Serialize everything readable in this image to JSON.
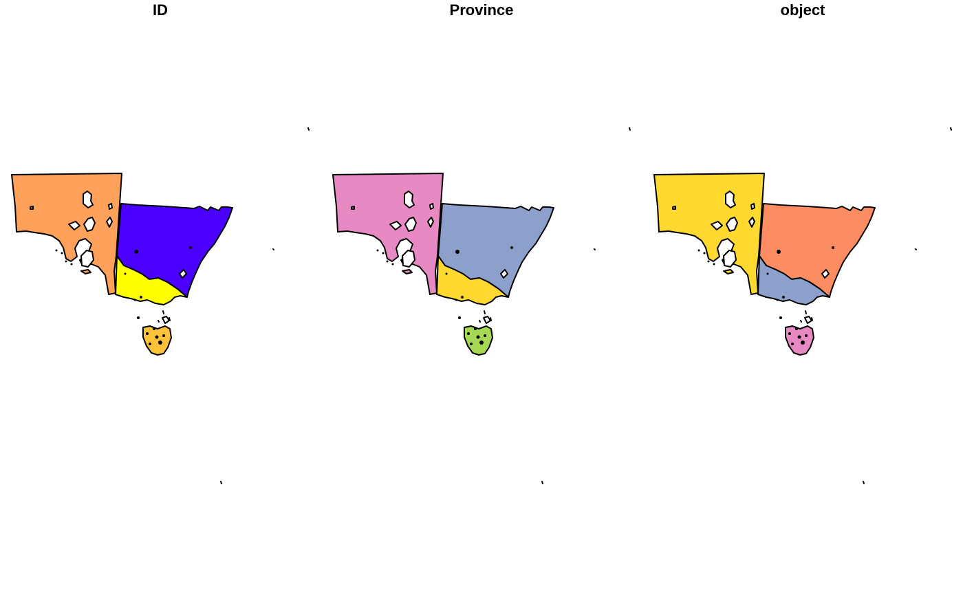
{
  "panels": [
    {
      "title": "ID",
      "colors": {
        "south_australia": "#FFA15A",
        "new_south_wales": "#4B00FF",
        "victoria": "#FFFF00",
        "tasmania": "#FFC23A"
      }
    },
    {
      "title": "Province",
      "colors": {
        "south_australia": "#E78AC3",
        "new_south_wales": "#8DA0CB",
        "victoria": "#FFD92F",
        "tasmania": "#A6D854"
      }
    },
    {
      "title": "object",
      "colors": {
        "south_australia": "#FFD92F",
        "new_south_wales": "#FC8D62",
        "victoria": "#8DA0CB",
        "tasmania": "#E78AC3"
      }
    }
  ]
}
